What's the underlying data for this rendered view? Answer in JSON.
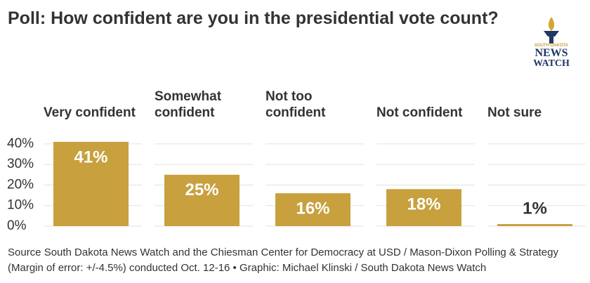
{
  "chart_data": {
    "type": "bar",
    "title": "Poll: How confident are you in the presidential vote count?",
    "categories": [
      "Very confident",
      "Somewhat confident",
      "Not too confident",
      "Not confident",
      "Not sure"
    ],
    "values": [
      41,
      25,
      16,
      18,
      1
    ],
    "value_labels": [
      "41%",
      "25%",
      "16%",
      "18%",
      "1%"
    ],
    "color": "#c8a03e",
    "ylim": [
      0,
      41
    ],
    "yticks": [
      {
        "value": 0,
        "label": "0%"
      },
      {
        "value": 10,
        "label": "10%"
      },
      {
        "value": 20,
        "label": "20%"
      },
      {
        "value": 30,
        "label": "30%"
      },
      {
        "value": 40,
        "label": "40%"
      }
    ],
    "grid": true,
    "source": "Source South Dakota News Watch and the Chiesman Center for Democracy at USD / Mason-Dixon Polling & Strategy (Margin of error: +/-4.5%) conducted Oct. 12-16 • Graphic: Michael Klinski / South Dakota News Watch"
  },
  "logo": {
    "top": "SOUTH DAKOTA",
    "line1": "NEWS",
    "line2": "WATCH"
  }
}
